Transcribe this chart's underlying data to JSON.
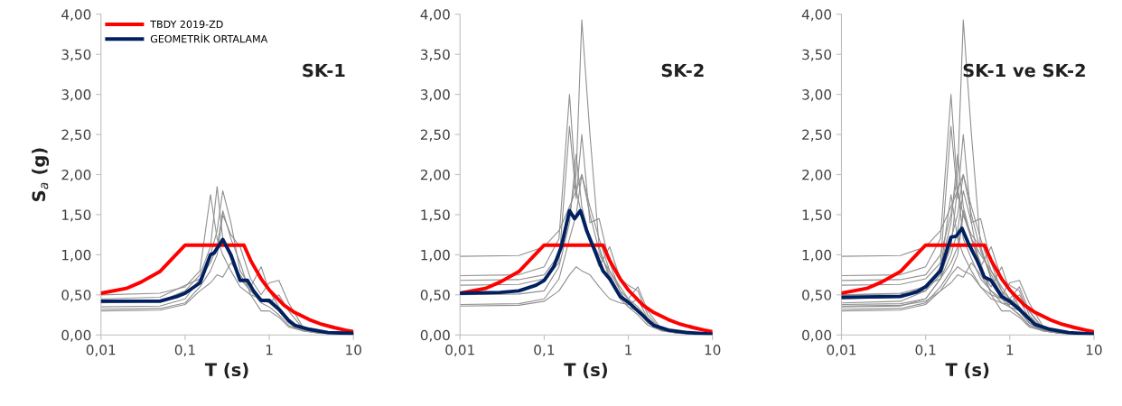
{
  "chart_data": [
    {
      "type": "line",
      "title": "SK-1",
      "xlabel": "T (s)",
      "ylabel": "S$_{a}$ (g)",
      "log": "x",
      "legend": "top left",
      "grid": false,
      "marker": "none",
      "line_style": "solid",
      "xlim": [
        0.01,
        10
      ],
      "xticks": [
        {
          "value": 0.01,
          "label": "0,01"
        },
        {
          "value": 0.1,
          "label": "0,1"
        },
        {
          "value": 1,
          "label": "1"
        },
        {
          "value": 10,
          "label": "10"
        }
      ],
      "ylim": [
        0,
        4
      ],
      "yticks": [
        {
          "value": 0,
          "label": "0,00"
        },
        {
          "value": 0.5,
          "label": "0,50"
        },
        {
          "value": 1,
          "label": "1,00"
        },
        {
          "value": 1.5,
          "label": "1,50"
        },
        {
          "value": 2,
          "label": "2,00"
        },
        {
          "value": 2.5,
          "label": "2,50"
        },
        {
          "value": 3,
          "label": "3,00"
        },
        {
          "value": 3.5,
          "label": "3,50"
        },
        {
          "value": 4,
          "label": "4,00"
        }
      ],
      "x": [
        0.01,
        0.05,
        0.1,
        0.15,
        0.2,
        0.24,
        0.28,
        0.35,
        0.45,
        0.6,
        0.8,
        1.0,
        1.3,
        1.7,
        2.5,
        4,
        10
      ],
      "series": [
        {
          "color": "#909090",
          "values": [
            0.5,
            0.52,
            0.6,
            0.8,
            1.75,
            1.2,
            1.0,
            0.8,
            0.6,
            0.5,
            0.45,
            0.4,
            0.3,
            0.15,
            0.06,
            0.03,
            0.01
          ]
        },
        {
          "color": "#909090",
          "values": [
            0.4,
            0.42,
            0.55,
            0.75,
            1.1,
            1.85,
            1.2,
            0.95,
            0.7,
            0.55,
            0.4,
            0.35,
            0.25,
            0.12,
            0.05,
            0.02,
            0.01
          ]
        },
        {
          "color": "#909090",
          "values": [
            0.35,
            0.36,
            0.45,
            0.7,
            1.0,
            1.3,
            1.8,
            1.4,
            0.8,
            0.6,
            0.85,
            0.55,
            0.35,
            0.2,
            0.07,
            0.03,
            0.01
          ]
        },
        {
          "color": "#909090",
          "values": [
            0.32,
            0.33,
            0.4,
            0.6,
            0.8,
            1.0,
            1.5,
            1.25,
            1.1,
            0.7,
            0.5,
            0.65,
            0.68,
            0.4,
            0.1,
            0.04,
            0.01
          ]
        },
        {
          "color": "#909090",
          "values": [
            0.45,
            0.47,
            0.62,
            0.7,
            0.9,
            1.1,
            1.55,
            1.2,
            0.9,
            0.5,
            0.3,
            0.3,
            0.22,
            0.1,
            0.05,
            0.02,
            0.01
          ]
        },
        {
          "color": "#909090",
          "values": [
            0.3,
            0.31,
            0.38,
            0.55,
            0.65,
            0.75,
            0.72,
            0.9,
            0.75,
            0.55,
            0.45,
            0.4,
            0.5,
            0.3,
            0.08,
            0.03,
            0.01
          ]
        },
        {
          "name": "TBDY 2019-ZD",
          "color": "#ff0000",
          "x": [
            0.01,
            0.02,
            0.03,
            0.05,
            0.1,
            0.5,
            0.6,
            0.8,
            1,
            1.5,
            2,
            3,
            4,
            6,
            8,
            10
          ],
          "values": [
            0.52,
            0.58,
            0.66,
            0.79,
            1.12,
            1.12,
            0.93,
            0.7,
            0.56,
            0.37,
            0.28,
            0.19,
            0.14,
            0.09,
            0.06,
            0.04
          ]
        },
        {
          "name": "GEOMETRİK ORTALAMA",
          "color": "#002060",
          "x": [
            0.01,
            0.05,
            0.08,
            0.1,
            0.15,
            0.2,
            0.22,
            0.28,
            0.35,
            0.45,
            0.55,
            0.65,
            0.8,
            1.0,
            1.3,
            1.7,
            2,
            3,
            5,
            10
          ],
          "values": [
            0.42,
            0.42,
            0.48,
            0.52,
            0.65,
            1.0,
            1.02,
            1.19,
            1.0,
            0.68,
            0.68,
            0.55,
            0.43,
            0.43,
            0.32,
            0.18,
            0.12,
            0.07,
            0.03,
            0.02
          ]
        }
      ]
    },
    {
      "type": "line",
      "title": "SK-2",
      "xlabel": "T (s)",
      "log": "x",
      "grid": false,
      "marker": "none",
      "line_style": "solid",
      "xlim": [
        0.01,
        10
      ],
      "xticks": [
        {
          "value": 0.01,
          "label": "0,01"
        },
        {
          "value": 0.1,
          "label": "0,1"
        },
        {
          "value": 1,
          "label": "1"
        },
        {
          "value": 10,
          "label": "10"
        }
      ],
      "ylim": [
        0,
        4
      ],
      "yticks": [
        {
          "value": 0,
          "label": "0,00"
        },
        {
          "value": 0.5,
          "label": "0,50"
        },
        {
          "value": 1,
          "label": "1,00"
        },
        {
          "value": 1.5,
          "label": "1,50"
        },
        {
          "value": 2,
          "label": "2,00"
        },
        {
          "value": 2.5,
          "label": "2,50"
        },
        {
          "value": 3,
          "label": "3,00"
        },
        {
          "value": 3.5,
          "label": "3,50"
        },
        {
          "value": 4,
          "label": "4,00"
        }
      ],
      "x": [
        0.01,
        0.05,
        0.1,
        0.15,
        0.2,
        0.24,
        0.28,
        0.35,
        0.45,
        0.6,
        0.8,
        1.0,
        1.3,
        1.7,
        2.5,
        4,
        10
      ],
      "series": [
        {
          "color": "#909090",
          "values": [
            0.98,
            0.99,
            1.1,
            1.3,
            1.6,
            1.8,
            1.5,
            1.2,
            1.0,
            0.8,
            0.6,
            0.45,
            0.35,
            0.2,
            0.08,
            0.03,
            0.01
          ]
        },
        {
          "color": "#909090",
          "values": [
            0.74,
            0.75,
            0.85,
            1.2,
            3.0,
            1.8,
            2.0,
            1.5,
            1.05,
            0.75,
            0.5,
            0.4,
            0.3,
            0.15,
            0.06,
            0.02,
            0.01
          ]
        },
        {
          "color": "#909090",
          "values": [
            0.68,
            0.69,
            0.75,
            1.0,
            1.5,
            2.0,
            3.93,
            2.5,
            1.1,
            0.7,
            0.45,
            0.35,
            0.25,
            0.12,
            0.05,
            0.02,
            0.01
          ]
        },
        {
          "color": "#909090",
          "values": [
            0.62,
            0.63,
            0.7,
            0.9,
            2.6,
            1.7,
            2.5,
            1.4,
            1.45,
            0.9,
            0.55,
            0.45,
            0.6,
            0.3,
            0.07,
            0.03,
            0.01
          ]
        },
        {
          "color": "#909090",
          "values": [
            0.5,
            0.51,
            0.55,
            0.85,
            1.4,
            2.25,
            1.6,
            1.2,
            0.85,
            1.1,
            0.7,
            0.62,
            0.55,
            0.25,
            0.06,
            0.02,
            0.01
          ]
        },
        {
          "color": "#909090",
          "values": [
            0.38,
            0.39,
            0.45,
            0.7,
            1.2,
            1.5,
            2.0,
            1.6,
            1.2,
            0.8,
            0.55,
            0.35,
            0.3,
            0.15,
            0.05,
            0.02,
            0.01
          ]
        },
        {
          "color": "#909090",
          "values": [
            0.36,
            0.37,
            0.42,
            0.55,
            0.75,
            0.85,
            0.8,
            0.75,
            0.6,
            0.45,
            0.4,
            0.38,
            0.45,
            0.2,
            0.06,
            0.02,
            0.01
          ]
        },
        {
          "color": "#ff0000",
          "x": [
            0.01,
            0.02,
            0.03,
            0.05,
            0.1,
            0.5,
            0.6,
            0.8,
            1,
            1.5,
            2,
            3,
            4,
            6,
            8,
            10
          ],
          "values": [
            0.52,
            0.58,
            0.66,
            0.79,
            1.12,
            1.12,
            0.93,
            0.7,
            0.56,
            0.37,
            0.28,
            0.19,
            0.14,
            0.09,
            0.06,
            0.04
          ]
        },
        {
          "color": "#002060",
          "x": [
            0.01,
            0.03,
            0.05,
            0.08,
            0.1,
            0.13,
            0.16,
            0.2,
            0.23,
            0.27,
            0.32,
            0.4,
            0.5,
            0.6,
            0.8,
            1.0,
            1.3,
            2,
            3,
            5,
            10
          ],
          "values": [
            0.52,
            0.53,
            0.55,
            0.62,
            0.68,
            0.85,
            1.1,
            1.55,
            1.45,
            1.55,
            1.3,
            1.05,
            0.8,
            0.7,
            0.48,
            0.41,
            0.3,
            0.12,
            0.06,
            0.03,
            0.01
          ]
        }
      ]
    },
    {
      "type": "line",
      "title": "SK-1 ve SK-2",
      "xlabel": "T (s)",
      "log": "x",
      "grid": false,
      "marker": "none",
      "line_style": "solid",
      "xlim": [
        0.01,
        10
      ],
      "xticks": [
        {
          "value": 0.01,
          "label": "0,01"
        },
        {
          "value": 0.1,
          "label": "0,1"
        },
        {
          "value": 1,
          "label": "1"
        },
        {
          "value": 10,
          "label": "10"
        }
      ],
      "ylim": [
        0,
        4
      ],
      "yticks": [
        {
          "value": 0,
          "label": "0,00"
        },
        {
          "value": 0.5,
          "label": "0,50"
        },
        {
          "value": 1,
          "label": "1,00"
        },
        {
          "value": 1.5,
          "label": "1,50"
        },
        {
          "value": 2,
          "label": "2,00"
        },
        {
          "value": 2.5,
          "label": "2,50"
        },
        {
          "value": 3,
          "label": "3,00"
        },
        {
          "value": 3.5,
          "label": "3,50"
        },
        {
          "value": 4,
          "label": "4,00"
        }
      ],
      "x": [
        0.01,
        0.05,
        0.1,
        0.15,
        0.2,
        0.24,
        0.28,
        0.35,
        0.45,
        0.6,
        0.8,
        1.0,
        1.3,
        1.7,
        2.5,
        4,
        10
      ],
      "series": [
        {
          "color": "#909090",
          "values": [
            0.5,
            0.52,
            0.6,
            0.8,
            1.75,
            1.2,
            1.0,
            0.8,
            0.6,
            0.5,
            0.45,
            0.4,
            0.3,
            0.15,
            0.06,
            0.03,
            0.01
          ]
        },
        {
          "color": "#909090",
          "values": [
            0.4,
            0.42,
            0.55,
            0.75,
            1.1,
            1.85,
            1.2,
            0.95,
            0.7,
            0.55,
            0.4,
            0.35,
            0.25,
            0.12,
            0.05,
            0.02,
            0.01
          ]
        },
        {
          "color": "#909090",
          "values": [
            0.35,
            0.36,
            0.45,
            0.7,
            1.0,
            1.3,
            1.8,
            1.4,
            0.8,
            0.6,
            0.85,
            0.55,
            0.35,
            0.2,
            0.07,
            0.03,
            0.01
          ]
        },
        {
          "color": "#909090",
          "values": [
            0.32,
            0.33,
            0.4,
            0.6,
            0.8,
            1.0,
            1.5,
            1.25,
            1.1,
            0.7,
            0.5,
            0.65,
            0.68,
            0.4,
            0.1,
            0.04,
            0.01
          ]
        },
        {
          "color": "#909090",
          "values": [
            0.45,
            0.47,
            0.62,
            0.7,
            0.9,
            1.1,
            1.55,
            1.2,
            0.9,
            0.5,
            0.3,
            0.3,
            0.22,
            0.1,
            0.05,
            0.02,
            0.01
          ]
        },
        {
          "color": "#909090",
          "values": [
            0.3,
            0.31,
            0.38,
            0.55,
            0.65,
            0.75,
            0.72,
            0.9,
            0.75,
            0.55,
            0.45,
            0.4,
            0.5,
            0.3,
            0.08,
            0.03,
            0.01
          ]
        },
        {
          "color": "#909090",
          "values": [
            0.98,
            0.99,
            1.1,
            1.3,
            1.6,
            1.8,
            1.5,
            1.2,
            1.0,
            0.8,
            0.6,
            0.45,
            0.35,
            0.2,
            0.08,
            0.03,
            0.01
          ]
        },
        {
          "color": "#909090",
          "values": [
            0.74,
            0.75,
            0.85,
            1.2,
            3.0,
            1.8,
            2.0,
            1.5,
            1.05,
            0.75,
            0.5,
            0.4,
            0.3,
            0.15,
            0.06,
            0.02,
            0.01
          ]
        },
        {
          "color": "#909090",
          "values": [
            0.68,
            0.69,
            0.75,
            1.0,
            1.5,
            2.0,
            3.93,
            2.5,
            1.1,
            0.7,
            0.45,
            0.35,
            0.25,
            0.12,
            0.05,
            0.02,
            0.01
          ]
        },
        {
          "color": "#909090",
          "values": [
            0.62,
            0.63,
            0.7,
            0.9,
            2.6,
            1.7,
            2.5,
            1.4,
            1.45,
            0.9,
            0.55,
            0.45,
            0.6,
            0.3,
            0.07,
            0.03,
            0.01
          ]
        },
        {
          "color": "#909090",
          "values": [
            0.5,
            0.51,
            0.55,
            0.85,
            1.4,
            2.25,
            1.6,
            1.2,
            0.85,
            1.1,
            0.7,
            0.62,
            0.55,
            0.25,
            0.06,
            0.02,
            0.01
          ]
        },
        {
          "color": "#909090",
          "values": [
            0.38,
            0.39,
            0.45,
            0.7,
            1.2,
            1.5,
            2.0,
            1.6,
            1.2,
            0.8,
            0.55,
            0.35,
            0.3,
            0.15,
            0.05,
            0.02,
            0.01
          ]
        },
        {
          "color": "#909090",
          "values": [
            0.36,
            0.37,
            0.42,
            0.55,
            0.75,
            0.85,
            0.8,
            0.75,
            0.6,
            0.45,
            0.4,
            0.38,
            0.45,
            0.2,
            0.06,
            0.02,
            0.01
          ]
        },
        {
          "color": "#ff0000",
          "x": [
            0.01,
            0.02,
            0.03,
            0.05,
            0.1,
            0.5,
            0.6,
            0.8,
            1,
            1.5,
            2,
            3,
            4,
            6,
            8,
            10
          ],
          "values": [
            0.52,
            0.58,
            0.66,
            0.79,
            1.12,
            1.12,
            0.93,
            0.7,
            0.56,
            0.37,
            0.28,
            0.19,
            0.14,
            0.09,
            0.06,
            0.04
          ]
        },
        {
          "color": "#002060",
          "x": [
            0.01,
            0.05,
            0.08,
            0.1,
            0.15,
            0.2,
            0.23,
            0.27,
            0.32,
            0.4,
            0.5,
            0.6,
            0.8,
            1,
            1.3,
            2,
            3,
            5,
            10
          ],
          "values": [
            0.47,
            0.48,
            0.54,
            0.6,
            0.8,
            1.22,
            1.23,
            1.33,
            1.15,
            0.95,
            0.72,
            0.68,
            0.48,
            0.42,
            0.32,
            0.13,
            0.07,
            0.03,
            0.01
          ]
        }
      ]
    }
  ]
}
